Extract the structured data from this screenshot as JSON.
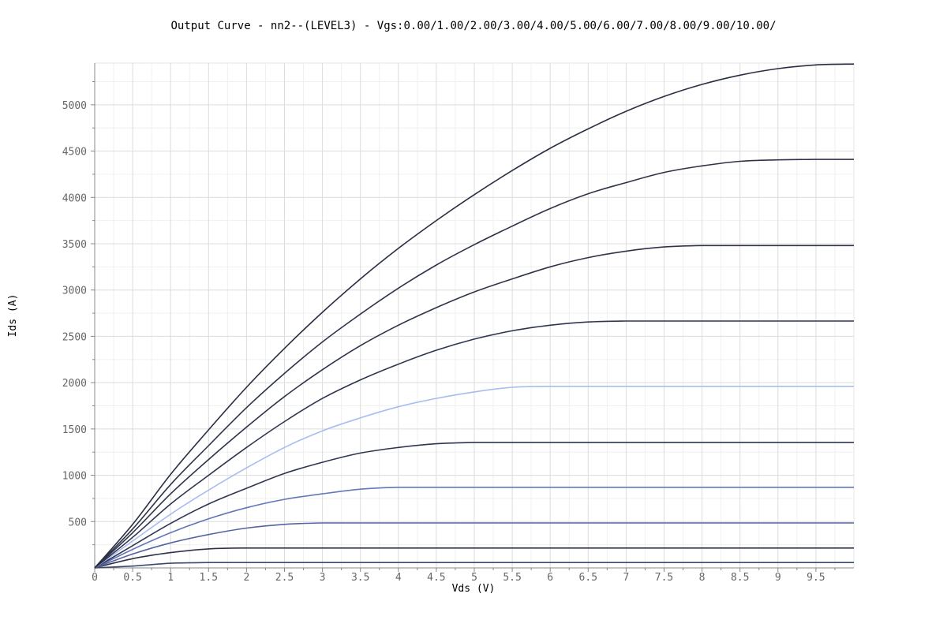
{
  "chart_data": {
    "type": "line",
    "title": "Output Curve - nn2--(LEVEL3) - Vgs:0.00/1.00/2.00/3.00/4.00/5.00/6.00/7.00/8.00/9.00/10.00/",
    "xlabel": "Vds (V)",
    "ylabel": "Ids (A)",
    "xlim": [
      0,
      10
    ],
    "ylim": [
      0,
      5450
    ],
    "grid": true,
    "x_ticks": [
      0,
      0.5,
      1,
      1.5,
      2,
      2.5,
      3,
      3.5,
      4,
      4.5,
      5,
      5.5,
      6,
      6.5,
      7,
      7.5,
      8,
      8.5,
      9,
      9.5
    ],
    "x_tick_labels": [
      "0",
      "0.5",
      "1",
      "1.5",
      "2",
      "2.5",
      "3",
      "3.5",
      "4",
      "4.5",
      "5",
      "5.5",
      "6",
      "6.5",
      "7",
      "7.5",
      "8",
      "8.5",
      "9",
      "9.5"
    ],
    "y_ticks": [
      500,
      1000,
      1500,
      2000,
      2500,
      3000,
      3500,
      4000,
      4500,
      5000
    ],
    "y_tick_labels": [
      "500",
      "1000",
      "1500",
      "2000",
      "2500",
      "3000",
      "3500",
      "4000",
      "4500",
      "5000"
    ],
    "x": [
      0,
      0.5,
      1,
      1.5,
      2,
      2.5,
      3,
      3.5,
      4,
      4.5,
      5,
      5.5,
      6,
      6.5,
      7,
      7.5,
      8,
      8.5,
      9,
      9.5,
      10
    ],
    "series": [
      {
        "values": [
          0,
          20,
          50,
          58,
          58,
          58,
          58,
          58,
          58,
          58,
          58,
          58,
          58,
          58,
          58,
          58,
          58,
          58,
          58,
          58,
          58
        ],
        "color": "#3a4a6e"
      },
      {
        "values": [
          0,
          100,
          165,
          205,
          215,
          215,
          215,
          215,
          215,
          215,
          215,
          215,
          215,
          215,
          215,
          215,
          215,
          215,
          215,
          215,
          215
        ],
        "color": "#2e3348"
      },
      {
        "values": [
          0,
          150,
          270,
          360,
          430,
          470,
          485,
          485,
          485,
          485,
          485,
          485,
          485,
          485,
          485,
          485,
          485,
          485,
          485,
          485,
          485
        ],
        "color": "#5563a0"
      },
      {
        "values": [
          0,
          200,
          380,
          530,
          650,
          740,
          800,
          850,
          870,
          870,
          870,
          870,
          870,
          870,
          870,
          870,
          870,
          870,
          870,
          870,
          870
        ],
        "color": "#6477b8"
      },
      {
        "values": [
          0,
          240,
          480,
          690,
          860,
          1020,
          1140,
          1240,
          1300,
          1340,
          1355,
          1355,
          1355,
          1355,
          1355,
          1355,
          1355,
          1355,
          1355,
          1355,
          1355
        ],
        "color": "#2f3550"
      },
      {
        "values": [
          0,
          290,
          580,
          840,
          1080,
          1300,
          1480,
          1620,
          1740,
          1830,
          1900,
          1950,
          1960,
          1960,
          1960,
          1960,
          1960,
          1960,
          1960,
          1960,
          1960
        ],
        "color": "#a8bcf0"
      },
      {
        "values": [
          0,
          330,
          690,
          1000,
          1300,
          1580,
          1830,
          2030,
          2200,
          2350,
          2470,
          2560,
          2620,
          2655,
          2665,
          2665,
          2665,
          2665,
          2665,
          2665,
          2665
        ],
        "color": "#2f3550"
      },
      {
        "values": [
          0,
          380,
          800,
          1170,
          1520,
          1850,
          2140,
          2400,
          2620,
          2810,
          2980,
          3120,
          3250,
          3350,
          3420,
          3465,
          3480,
          3480,
          3480,
          3480,
          3480
        ],
        "color": "#2e3348"
      },
      {
        "values": [
          0,
          420,
          900,
          1320,
          1730,
          2100,
          2440,
          2740,
          3020,
          3270,
          3490,
          3690,
          3880,
          4040,
          4160,
          4270,
          4340,
          4390,
          4405,
          4410,
          4410
        ],
        "color": "#2e3348"
      },
      {
        "values": [
          0,
          470,
          1010,
          1490,
          1950,
          2370,
          2760,
          3120,
          3450,
          3750,
          4030,
          4290,
          4530,
          4740,
          4930,
          5090,
          5220,
          5320,
          5390,
          5430,
          5440
        ],
        "color": "#2a2e42"
      }
    ]
  }
}
